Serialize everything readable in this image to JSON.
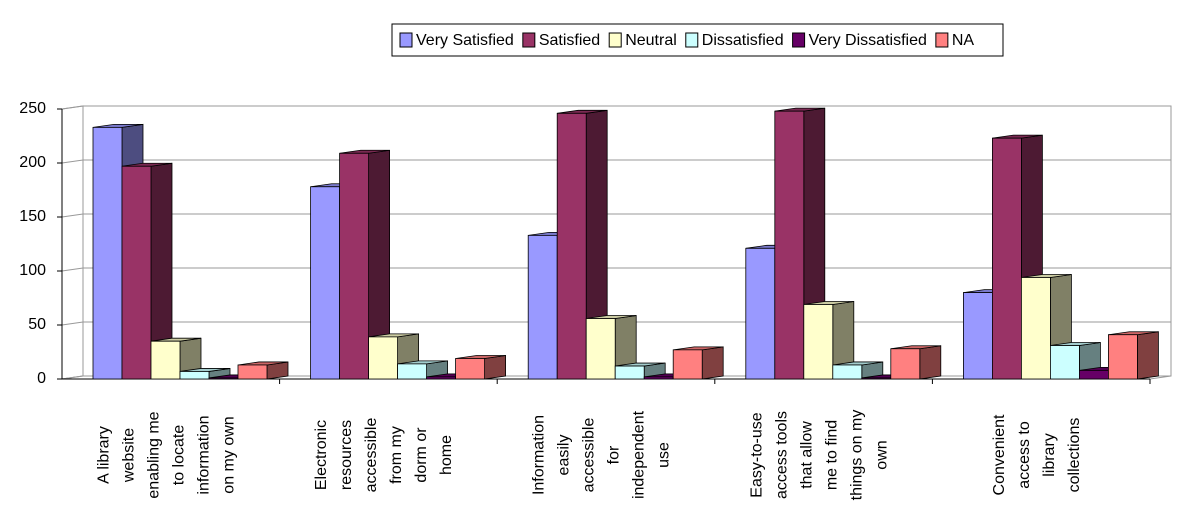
{
  "chart_data": {
    "type": "bar3d",
    "categories": [
      [
        "A library",
        "website",
        "enabling me",
        "to locate",
        "information",
        "on my own"
      ],
      [
        "Electronic",
        "resources",
        "accessible",
        "from my",
        "dorm or",
        "home"
      ],
      [
        "Information",
        "easily",
        "accessible",
        "for",
        "independent",
        "use"
      ],
      [
        "Easy-to-use",
        "access tools",
        "that allow",
        "me to find",
        "things on my",
        "own"
      ],
      [
        "Convenient",
        "access to",
        "library",
        "collections"
      ]
    ],
    "series": [
      {
        "name": "Very Satisfied",
        "color": "#9999ff",
        "values": [
          233,
          178,
          133,
          121,
          80
        ]
      },
      {
        "name": "Satisfied",
        "color": "#993366",
        "values": [
          197,
          209,
          246,
          248,
          223
        ]
      },
      {
        "name": "Neutral",
        "color": "#ffffcc",
        "values": [
          35,
          39,
          56,
          69,
          94
        ]
      },
      {
        "name": "Dissatisfied",
        "color": "#ccffff",
        "values": [
          7,
          14,
          12,
          13,
          31
        ]
      },
      {
        "name": "Very Dissatisfied",
        "color": "#660066",
        "values": [
          1,
          2,
          2,
          1,
          8
        ]
      },
      {
        "name": "NA",
        "color": "#ff8080",
        "values": [
          13,
          19,
          27,
          28,
          41
        ]
      }
    ],
    "ylim": [
      0,
      250
    ],
    "yticks": [
      0,
      50,
      100,
      150,
      200,
      250
    ],
    "grid": true,
    "legend": "top"
  }
}
